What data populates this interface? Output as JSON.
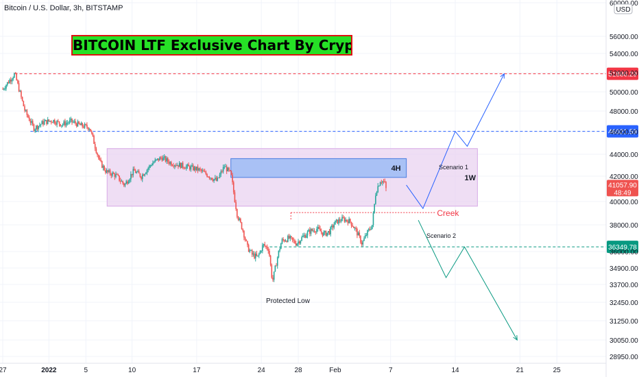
{
  "symbol_label": "Bitcoin / U.S. Dollar, 3h, BITSTAMP",
  "chart_title": "BITCOIN LTF Exclusive Chart By CryptoPatel",
  "currency_badge": "USD",
  "colors": {
    "up": "#26a69a",
    "down": "#ef5350",
    "grid": "#f0f3fa",
    "zone_fill": "#e9d3f0",
    "zone_stroke": "#d7a9e6",
    "ob_fill": "#9cbcf5",
    "ob_stroke": "#4a7ee0",
    "red": "#f23645",
    "blue": "#2962ff",
    "green": "#089981"
  },
  "chart_data": {
    "type": "candlestick",
    "x_axis_ticks": [
      {
        "label": "27",
        "day": 0
      },
      {
        "label": "2022",
        "day": 5
      },
      {
        "label": "5",
        "day": 9
      },
      {
        "label": "10",
        "day": 14
      },
      {
        "label": "17",
        "day": 21
      },
      {
        "label": "24",
        "day": 28
      },
      {
        "label": "28",
        "day": 32
      },
      {
        "label": "Feb",
        "day": 36
      },
      {
        "label": "7",
        "day": 42
      },
      {
        "label": "14",
        "day": 49
      },
      {
        "label": "21",
        "day": 56
      },
      {
        "label": "25",
        "day": 60
      }
    ],
    "y_axis_ticks": [
      60000,
      56000,
      54000,
      52000,
      50000,
      48000,
      46000,
      44000,
      42000,
      40000,
      38000,
      36000,
      34900,
      33700,
      32450,
      31250,
      30050,
      28950
    ],
    "y_axis_tick_labels": [
      "60000.00",
      "56000.00",
      "54000.00",
      "52000.00",
      "50000.00",
      "48000.00",
      "46000.00",
      "44000.00",
      "42000.00",
      "40000.00",
      "38000.00",
      "36000.00",
      "34900.00",
      "33700.00",
      "32450.00",
      "31250.00",
      "30050.00",
      "28950.00"
    ],
    "price_path": [
      [
        0,
        50300
      ],
      [
        1.3,
        51886
      ],
      [
        2.4,
        48000
      ],
      [
        3.4,
        46300
      ],
      [
        4.4,
        46900
      ],
      [
        5.4,
        47100
      ],
      [
        6.4,
        46700
      ],
      [
        7.4,
        47000
      ],
      [
        8.4,
        46600
      ],
      [
        9.4,
        46400
      ],
      [
        10.5,
        43300
      ],
      [
        11.2,
        42400
      ],
      [
        12.2,
        42100
      ],
      [
        13.2,
        41300
      ],
      [
        14.2,
        42500
      ],
      [
        15.0,
        42000
      ],
      [
        16.2,
        43200
      ],
      [
        17.2,
        43700
      ],
      [
        18.2,
        43200
      ],
      [
        19.2,
        43000
      ],
      [
        20.2,
        42800
      ],
      [
        21.2,
        42600
      ],
      [
        22.2,
        42100
      ],
      [
        23.2,
        41600
      ],
      [
        24.0,
        42900
      ],
      [
        24.7,
        42200
      ],
      [
        25.4,
        38800
      ],
      [
        26.0,
        37600
      ],
      [
        26.5,
        36300
      ],
      [
        27.0,
        35800
      ],
      [
        27.6,
        35600
      ],
      [
        28.2,
        36500
      ],
      [
        28.8,
        36200
      ],
      [
        29.2,
        33900
      ],
      [
        29.7,
        35500
      ],
      [
        30.2,
        36800
      ],
      [
        31.0,
        37000
      ],
      [
        31.8,
        36600
      ],
      [
        32.5,
        37100
      ],
      [
        33.2,
        37500
      ],
      [
        34.0,
        37700
      ],
      [
        34.8,
        37300
      ],
      [
        35.4,
        37500
      ],
      [
        36.0,
        38200
      ],
      [
        36.8,
        38500
      ],
      [
        37.6,
        38300
      ],
      [
        38.3,
        37500
      ],
      [
        38.9,
        36600
      ],
      [
        39.4,
        37300
      ],
      [
        40.0,
        38000
      ],
      [
        40.4,
        40800
      ],
      [
        40.9,
        41700
      ],
      [
        41.3,
        41500
      ],
      [
        41.6,
        41058
      ]
    ],
    "lines": [
      {
        "label": "51886.29",
        "value": 51886.29,
        "color": "red",
        "dash": true,
        "from_day": 1.3
      },
      {
        "label": "46021.59",
        "value": 46021.59,
        "color": "blue",
        "dash": true,
        "from_day": 3
      },
      {
        "label": "36349.78",
        "value": 36349.78,
        "color": "green",
        "dash": true,
        "from_day": 28.9
      }
    ],
    "last_price": {
      "value": "41057.90",
      "countdown": "48:49"
    },
    "zones": [
      {
        "name": "1W",
        "from_day": 11.3,
        "to_day": 51.4,
        "low": 39600,
        "high": 44500,
        "text_at": 50
      },
      {
        "name": "4H",
        "from_day": 24.7,
        "to_day": 43.7,
        "low": 41900,
        "high": 43600
      }
    ],
    "creek": {
      "label": "Creek",
      "value": 39050,
      "from_day": 31.2,
      "to_day": 46.8
    },
    "scenario_1": {
      "label": "Scenario 1",
      "path": [
        [
          43.7,
          41300
        ],
        [
          45.5,
          39400
        ],
        [
          49.0,
          46021
        ],
        [
          50.3,
          44700
        ],
        [
          54.3,
          51886
        ]
      ]
    },
    "scenario_2": {
      "label": "Scenario 2",
      "path": [
        [
          45.0,
          38400
        ],
        [
          48.0,
          34200
        ],
        [
          50.0,
          36349
        ],
        [
          55.7,
          30050
        ]
      ]
    },
    "annotations": [
      "Protected Low"
    ]
  }
}
